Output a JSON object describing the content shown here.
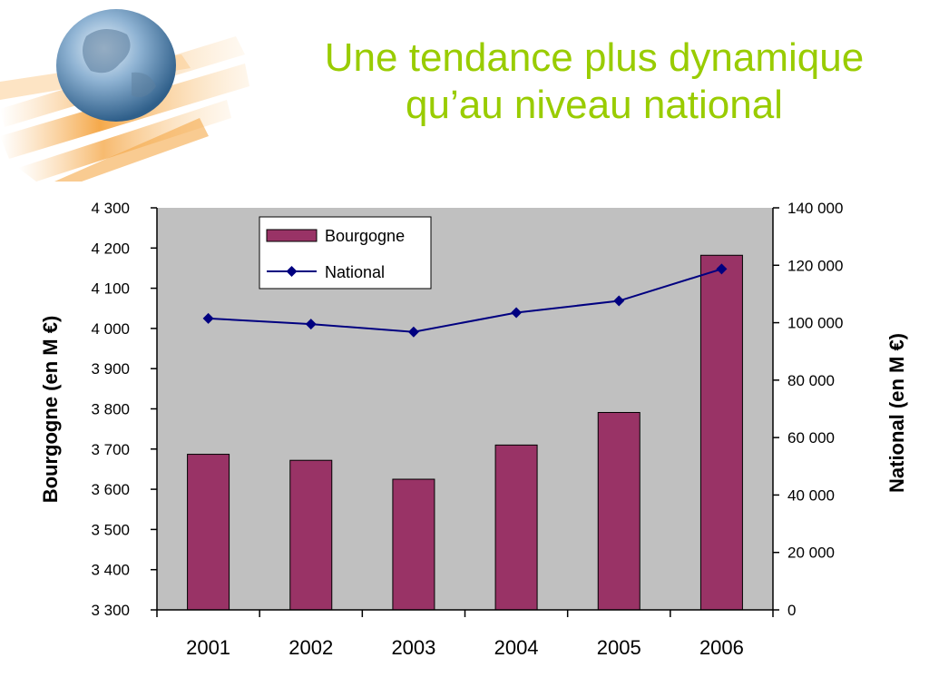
{
  "slide": {
    "title_line1": "Une tendance plus dynamique",
    "title_line2": "qu’au niveau national",
    "logo_icon": "globe-icon",
    "title_color": "#99cc00"
  },
  "chart_data": {
    "type": "bar",
    "title": "",
    "categories": [
      "2001",
      "2002",
      "2003",
      "2004",
      "2005",
      "2006"
    ],
    "series": [
      {
        "name": "Bourgogne",
        "kind": "bar",
        "axis": "left",
        "color": "#993366",
        "values": [
          3687,
          3672,
          3625,
          3710,
          3791,
          4182
        ]
      },
      {
        "name": "National",
        "kind": "line",
        "axis": "right",
        "color": "#000080",
        "values": [
          101500,
          99500,
          96800,
          103500,
          107600,
          118700
        ]
      }
    ],
    "ylabel_left": "Bourgogne (en M €)",
    "ylabel_right": "National (en M €)",
    "ylim_left": [
      3300,
      4300
    ],
    "ylim_right": [
      0,
      140000
    ],
    "yticks_left": [
      "4 300",
      "4 200",
      "4 100",
      "4 000",
      "3 900",
      "3 800",
      "3 700",
      "3 600",
      "3 500",
      "3 400",
      "3 300"
    ],
    "yticks_right": [
      "140 000",
      "120 000",
      "100 000",
      "80 000",
      "60 000",
      "40 000",
      "20 000",
      "0"
    ],
    "plot_background": "#c0c0c0",
    "grid": false,
    "legend_position": "top-center"
  }
}
